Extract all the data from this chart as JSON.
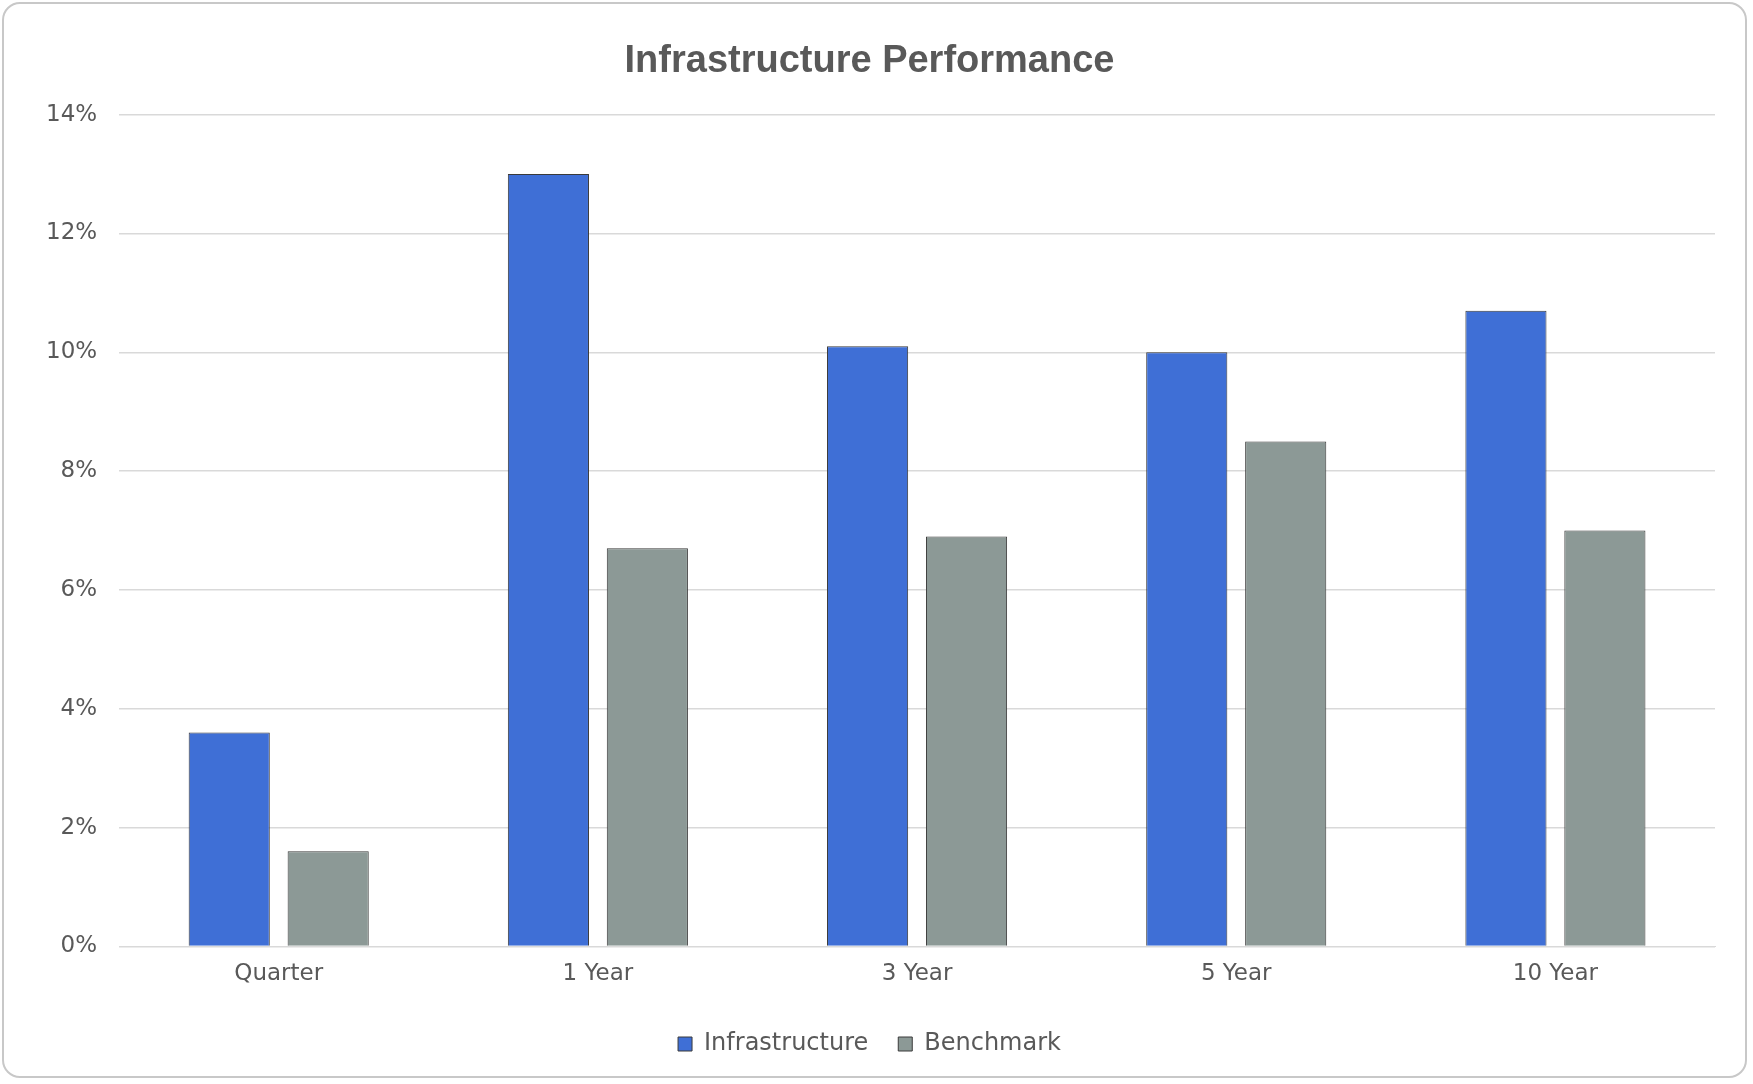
{
  "chart_data": {
    "type": "bar",
    "title": "Infrastructure Performance",
    "categories": [
      "Quarter",
      "1 Year",
      "3 Year",
      "5 Year",
      "10 Year"
    ],
    "series": [
      {
        "name": "Infrastructure",
        "color": "#3f6fd6",
        "values": [
          3.6,
          13.0,
          10.1,
          10.0,
          10.7
        ]
      },
      {
        "name": "Benchmark",
        "color": "#8c9996",
        "values": [
          1.6,
          6.7,
          6.9,
          8.5,
          7.0
        ]
      }
    ],
    "ylim": [
      0,
      14
    ],
    "yticks": [
      {
        "value": 0,
        "label": "0%"
      },
      {
        "value": 2,
        "label": "2%"
      },
      {
        "value": 4,
        "label": "4%"
      },
      {
        "value": 6,
        "label": "6%"
      },
      {
        "value": 8,
        "label": "8%"
      },
      {
        "value": 10,
        "label": "10%"
      },
      {
        "value": 12,
        "label": "12%"
      },
      {
        "value": 14,
        "label": "14%"
      }
    ],
    "grid": "y",
    "legend": "bottom"
  }
}
